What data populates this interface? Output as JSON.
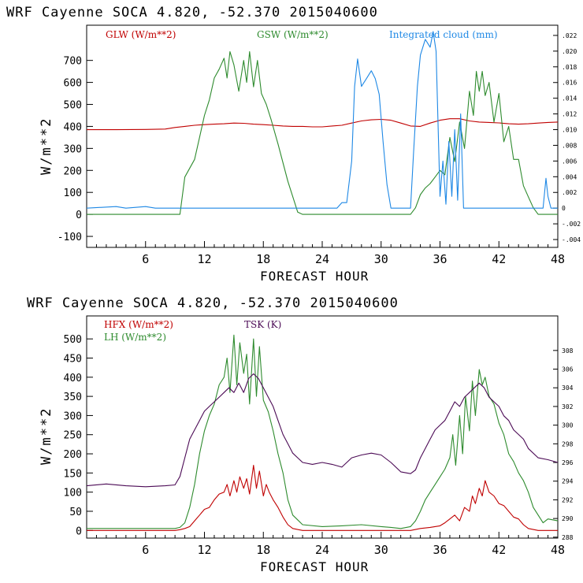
{
  "chart_data": [
    {
      "type": "line",
      "title": "WRF   Cayenne SOCA   4.820, -52.370  2015040600",
      "xlabel": "FORECAST HOUR",
      "ylabel": "W/m**2",
      "xlim": [
        0,
        48
      ],
      "ylim": [
        -150,
        860
      ],
      "x_ticks": [
        6,
        12,
        18,
        24,
        30,
        36,
        42,
        48
      ],
      "x_tick_labels": [
        "6",
        "12",
        "18",
        "24",
        "30",
        "36",
        "42",
        "48"
      ],
      "y_ticks": [
        -100,
        0,
        100,
        200,
        300,
        400,
        500,
        600,
        700
      ],
      "y_tick_labels": [
        "-100",
        "0",
        "100",
        "200",
        "300",
        "400",
        "500",
        "600",
        "700"
      ],
      "right_axis": {
        "ylim": [
          -0.005,
          0.0233
        ],
        "ticks": [
          -0.004,
          -0.002,
          0,
          0.002,
          0.004,
          0.006,
          0.008,
          0.01,
          0.012,
          0.014,
          0.016,
          0.018,
          0.02,
          0.022
        ],
        "tick_labels": [
          "-.004",
          "-.002",
          "0",
          ".002",
          ".004",
          ".006",
          ".008",
          ".010",
          ".012",
          ".014",
          ".016",
          ".018",
          ".020",
          ".022"
        ]
      },
      "series": [
        {
          "name": "GLW (W/m**2)",
          "color": "#c00000",
          "axis": "left",
          "x": [
            0,
            3,
            6,
            8,
            9,
            10,
            11,
            12,
            13,
            14,
            15,
            16,
            17,
            18,
            19,
            20,
            21,
            22,
            23,
            24,
            25,
            26,
            27,
            28,
            29,
            30,
            31,
            32,
            33,
            34,
            35,
            36,
            37,
            38,
            39,
            40,
            41,
            42,
            43,
            44,
            45,
            46,
            47,
            48
          ],
          "values": [
            385,
            385,
            386,
            388,
            395,
            400,
            405,
            408,
            410,
            412,
            415,
            414,
            410,
            408,
            405,
            402,
            400,
            400,
            398,
            398,
            402,
            405,
            415,
            425,
            430,
            432,
            428,
            415,
            402,
            400,
            415,
            428,
            435,
            435,
            425,
            420,
            418,
            416,
            412,
            410,
            412,
            415,
            418,
            420
          ]
        },
        {
          "name": "GSW (W/m**2)",
          "color": "#2e8b2e",
          "axis": "left",
          "x": [
            0,
            9.5,
            10,
            11,
            11.5,
            12,
            12.5,
            13,
            13.5,
            14,
            14.3,
            14.6,
            15,
            15.5,
            16,
            16.3,
            16.6,
            17,
            17.4,
            17.8,
            18.3,
            18.8,
            19.5,
            20.5,
            21.5,
            22,
            33,
            33.5,
            34,
            34.5,
            35,
            35.5,
            36,
            36.5,
            37,
            37.5,
            38,
            38.5,
            39,
            39.4,
            39.7,
            40,
            40.3,
            40.6,
            41,
            41.5,
            42,
            42.5,
            43,
            43.5,
            44,
            44.5,
            45,
            45.5,
            46,
            48
          ],
          "values": [
            0,
            0,
            170,
            250,
            350,
            450,
            520,
            620,
            660,
            710,
            620,
            740,
            680,
            560,
            700,
            600,
            740,
            580,
            700,
            550,
            500,
            430,
            320,
            150,
            10,
            0,
            0,
            30,
            90,
            120,
            140,
            170,
            200,
            180,
            350,
            240,
            420,
            300,
            560,
            450,
            650,
            560,
            650,
            540,
            600,
            420,
            550,
            330,
            400,
            250,
            250,
            130,
            80,
            30,
            0,
            0
          ]
        },
        {
          "name": "Integrated cloud (mm)",
          "color": "#1e88e5",
          "axis": "right",
          "x": [
            0,
            3,
            4,
            6,
            7,
            25.5,
            26,
            26.5,
            27,
            27.3,
            27.6,
            28,
            28.5,
            29,
            29.4,
            29.8,
            30.2,
            30.6,
            31,
            33,
            33.3,
            33.7,
            34,
            34.5,
            35,
            35.3,
            35.6,
            36,
            36.3,
            36.6,
            36.9,
            37.2,
            37.5,
            37.8,
            38.1,
            38.4,
            38.7,
            39,
            46.5,
            46.8,
            47,
            47.3,
            48
          ],
          "values": [
            0,
            0.0002,
            0,
            0.0002,
            0,
            0,
            0.0007,
            0.0007,
            0.006,
            0.0155,
            0.019,
            0.0155,
            0.0165,
            0.0175,
            0.0165,
            0.0145,
            0.0085,
            0.003,
            0,
            0,
            0.007,
            0.0155,
            0.0195,
            0.0215,
            0.0205,
            0.0225,
            0.02,
            0.0015,
            0.006,
            0.0005,
            0.0085,
            0.0015,
            0.01,
            0.001,
            0.012,
            0,
            0,
            0,
            0,
            0.0038,
            0.0015,
            0,
            0
          ]
        }
      ]
    },
    {
      "type": "line",
      "title": "WRF   Cayenne SOCA   4.820, -52.370  2015040600",
      "xlabel": "FORECAST HOUR",
      "ylabel": "W/m**2",
      "xlim": [
        0,
        48
      ],
      "ylim": [
        -20,
        560
      ],
      "x_ticks": [
        6,
        12,
        18,
        24,
        30,
        36,
        42,
        48
      ],
      "x_tick_labels": [
        "6",
        "12",
        "18",
        "24",
        "30",
        "36",
        "42",
        "48"
      ],
      "y_ticks": [
        0,
        50,
        100,
        150,
        200,
        250,
        300,
        350,
        400,
        450,
        500
      ],
      "y_tick_labels": [
        "0",
        "50",
        "100",
        "150",
        "200",
        "250",
        "300",
        "350",
        "400",
        "450",
        "500"
      ],
      "right_axis": {
        "ylim": [
          287.9,
          311.7
        ],
        "ticks": [
          288,
          290,
          292,
          294,
          296,
          298,
          300,
          302,
          304,
          306,
          308
        ],
        "tick_labels": [
          "288",
          "290",
          "292",
          "294",
          "296",
          "298",
          "300",
          "302",
          "304",
          "306",
          "308"
        ]
      },
      "series": [
        {
          "name": "HFX (W/m**2)",
          "color": "#c00000",
          "axis": "left",
          "x": [
            0,
            9,
            9.5,
            10,
            10.5,
            11,
            11.5,
            12,
            12.5,
            13,
            13.5,
            14,
            14.3,
            14.6,
            15,
            15.3,
            15.6,
            16,
            16.3,
            16.6,
            17,
            17.3,
            17.6,
            18,
            18.3,
            18.6,
            19,
            19.5,
            20,
            20.5,
            21,
            22,
            33,
            34,
            35,
            36,
            36.5,
            37,
            37.5,
            38,
            38.5,
            39,
            39.3,
            39.6,
            40,
            40.3,
            40.6,
            41,
            41.5,
            42,
            42.5,
            43,
            43.5,
            44,
            44.5,
            45,
            46,
            48
          ],
          "values": [
            0,
            0,
            2,
            5,
            10,
            25,
            40,
            55,
            60,
            80,
            95,
            100,
            120,
            90,
            130,
            100,
            140,
            110,
            135,
            95,
            170,
            110,
            155,
            90,
            120,
            100,
            80,
            60,
            35,
            15,
            5,
            0,
            0,
            5,
            8,
            12,
            20,
            30,
            40,
            25,
            60,
            50,
            90,
            70,
            110,
            90,
            130,
            100,
            90,
            70,
            65,
            50,
            35,
            30,
            15,
            5,
            0,
            0
          ]
        },
        {
          "name": "LH  (W/m**2)",
          "color": "#2e8b2e",
          "axis": "left",
          "x": [
            0,
            9,
            9.5,
            10,
            10.5,
            11,
            11.5,
            12,
            12.5,
            13,
            13.5,
            14,
            14.3,
            14.6,
            15,
            15.3,
            15.6,
            16,
            16.3,
            16.6,
            17,
            17.3,
            17.6,
            18,
            18.5,
            19,
            19.5,
            20,
            20.5,
            21,
            22,
            24,
            26,
            28,
            30,
            31,
            32,
            33,
            33.5,
            34,
            34.5,
            35,
            35.5,
            36,
            36.5,
            37,
            37.3,
            37.6,
            38,
            38.3,
            38.6,
            39,
            39.3,
            39.6,
            40,
            40.3,
            40.6,
            41,
            41.5,
            42,
            42.5,
            43,
            43.5,
            44,
            44.5,
            45,
            45.5,
            46,
            46.5,
            47,
            48
          ],
          "values": [
            5,
            5,
            8,
            20,
            60,
            120,
            200,
            260,
            300,
            330,
            380,
            400,
            450,
            360,
            510,
            380,
            490,
            410,
            460,
            330,
            500,
            350,
            480,
            340,
            310,
            260,
            200,
            150,
            80,
            40,
            15,
            10,
            12,
            15,
            10,
            8,
            5,
            10,
            25,
            50,
            80,
            100,
            120,
            140,
            160,
            190,
            250,
            170,
            300,
            200,
            350,
            260,
            390,
            300,
            420,
            380,
            400,
            350,
            330,
            280,
            250,
            200,
            180,
            150,
            130,
            100,
            60,
            40,
            20,
            30,
            25
          ]
        },
        {
          "name": "TSK (K)",
          "color": "#4b0a55",
          "axis": "right",
          "x": [
            0,
            2,
            4,
            6,
            8,
            9,
            9.5,
            10,
            10.5,
            11,
            11.5,
            12,
            12.5,
            13,
            13.5,
            14,
            14.5,
            15,
            15.5,
            16,
            16.5,
            17,
            17.5,
            18,
            18.5,
            19,
            19.5,
            20,
            20.5,
            21,
            21.5,
            22,
            23,
            24,
            25,
            26,
            27,
            28,
            29,
            30,
            31,
            32,
            33,
            33.5,
            34,
            34.5,
            35,
            35.5,
            36,
            36.5,
            37,
            37.5,
            38,
            38.5,
            39,
            39.5,
            40,
            40.5,
            41,
            41.5,
            42,
            42.5,
            43,
            43.5,
            44,
            44.5,
            45,
            46,
            47,
            48
          ],
          "values": [
            293.5,
            293.7,
            293.5,
            293.4,
            293.5,
            293.6,
            294.5,
            296.5,
            298.5,
            299.5,
            300.5,
            301.5,
            302,
            302.5,
            303,
            303.5,
            304,
            303.5,
            304.5,
            303.5,
            305,
            305.5,
            305,
            304,
            303,
            302,
            300.5,
            299,
            298,
            297,
            296.5,
            296,
            295.8,
            296,
            295.8,
            295.5,
            296.5,
            296.8,
            297,
            296.8,
            296,
            295,
            294.8,
            295.2,
            296.5,
            297.5,
            298.5,
            299.5,
            300,
            300.5,
            301.5,
            302.5,
            302,
            303,
            303.5,
            304,
            304.5,
            304,
            303,
            302.5,
            302,
            301,
            300.5,
            299.5,
            299,
            298.5,
            297.5,
            296.5,
            296.3,
            296
          ]
        }
      ]
    }
  ]
}
